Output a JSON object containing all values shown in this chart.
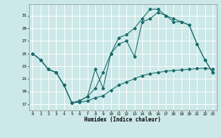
{
  "xlabel": "Humidex (Indice chaleur)",
  "background_color": "#cce8e8",
  "grid_color": "#ffffff",
  "line_color": "#1a6b6b",
  "xlim": [
    -0.5,
    23.5
  ],
  "ylim": [
    16.0,
    32.8
  ],
  "yticks": [
    17,
    19,
    21,
    23,
    25,
    27,
    29,
    31
  ],
  "xticks": [
    0,
    1,
    2,
    3,
    4,
    5,
    6,
    7,
    8,
    9,
    10,
    11,
    12,
    13,
    14,
    15,
    16,
    17,
    18,
    19,
    20,
    21,
    22,
    23
  ],
  "series1_x": [
    0,
    1,
    2,
    3,
    4,
    5,
    6,
    7,
    8,
    9,
    10,
    11,
    12,
    13,
    14,
    15,
    16,
    17,
    18,
    19,
    20,
    21,
    22,
    23
  ],
  "series1_y": [
    25,
    24,
    22.5,
    22,
    20,
    17.2,
    17.5,
    18.2,
    19.5,
    22,
    25,
    27.5,
    28,
    29,
    30.5,
    32,
    32,
    31,
    30,
    30,
    29.5,
    26.5,
    24,
    22
  ],
  "series2_x": [
    0,
    1,
    2,
    3,
    4,
    5,
    6,
    7,
    8,
    9,
    10,
    11,
    12,
    13,
    14,
    15,
    16,
    17,
    18,
    19,
    20,
    21,
    22,
    23
  ],
  "series2_y": [
    25,
    24,
    22.5,
    22,
    20,
    17.2,
    17.5,
    18.2,
    22.5,
    19.5,
    25,
    26.5,
    27,
    24.5,
    30,
    30.5,
    31.5,
    31,
    30.5,
    30,
    29.5,
    26.5,
    24,
    22
  ],
  "series3_x": [
    0,
    1,
    2,
    3,
    4,
    5,
    6,
    7,
    8,
    9,
    10,
    11,
    12,
    13,
    14,
    15,
    16,
    17,
    18,
    19,
    20,
    21,
    22,
    23
  ],
  "series3_y": [
    25,
    24,
    22.5,
    22,
    20,
    17.2,
    17.3,
    17.5,
    18.0,
    18.3,
    19.2,
    20.0,
    20.5,
    21.0,
    21.5,
    21.8,
    22.0,
    22.2,
    22.3,
    22.4,
    22.5,
    22.6,
    22.7,
    22.5
  ]
}
